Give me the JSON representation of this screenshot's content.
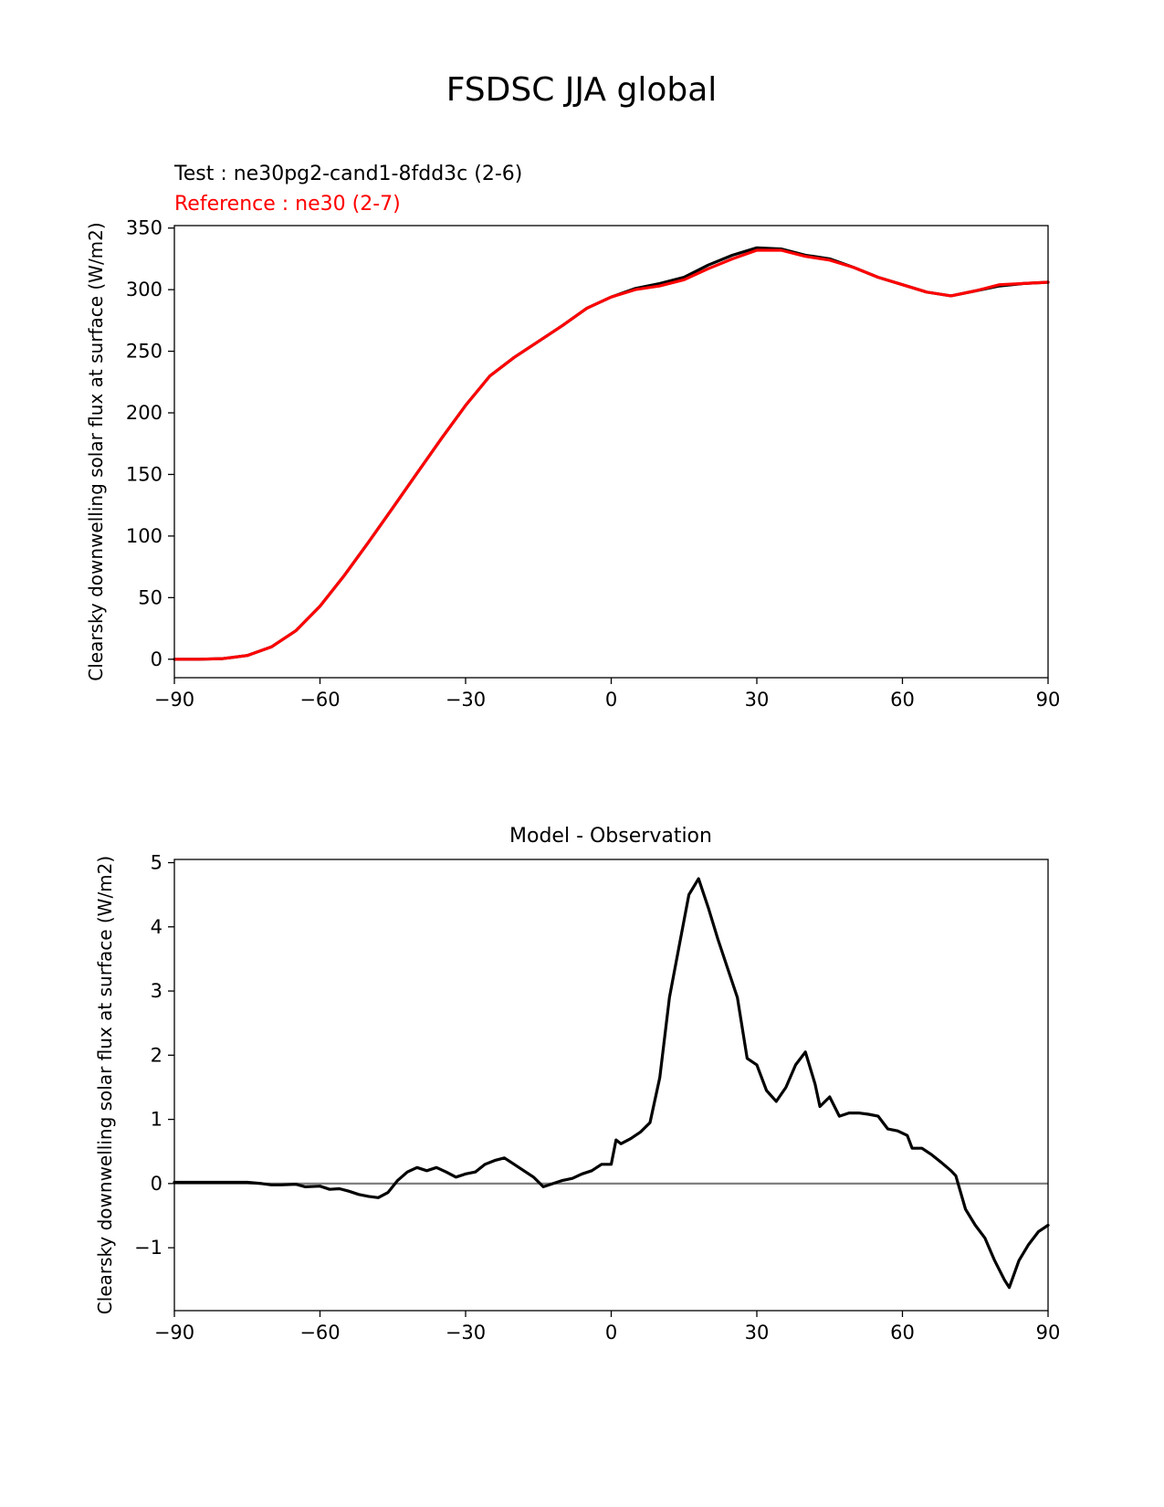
{
  "figure": {
    "title": "FSDSC JJA global"
  },
  "chart_data": [
    {
      "type": "line",
      "title": "",
      "annotation_test": "Test : ne30pg2-cand1-8fdd3c (2-6)",
      "annotation_reference": "Reference : ne30 (2-7)",
      "xlabel": "",
      "ylabel": "Clearsky downwelling solar flux at surface (W/m2)",
      "xlim": [
        -90,
        90
      ],
      "ylim": [
        -15,
        352
      ],
      "xticks": [
        -90,
        -60,
        -30,
        0,
        30,
        60,
        90
      ],
      "xtick_labels": [
        "−90",
        "−60",
        "−30",
        "0",
        "30",
        "60",
        "90"
      ],
      "yticks": [
        0,
        50,
        100,
        150,
        200,
        250,
        300,
        350
      ],
      "ytick_labels": [
        "0",
        "50",
        "100",
        "150",
        "200",
        "250",
        "300",
        "350"
      ],
      "grid": false,
      "series": [
        {
          "name": "Test",
          "color": "#000000",
          "x": [
            -90,
            -85,
            -80,
            -75,
            -70,
            -65,
            -60,
            -55,
            -50,
            -45,
            -40,
            -35,
            -30,
            -25,
            -20,
            -15,
            -10,
            -5,
            0,
            5,
            10,
            15,
            20,
            25,
            30,
            35,
            40,
            45,
            50,
            55,
            60,
            65,
            70,
            75,
            80,
            85,
            90
          ],
          "y": [
            0,
            0,
            0.5,
            3,
            10,
            23,
            43,
            68,
            95,
            123,
            151,
            179,
            206,
            230,
            245,
            258,
            271,
            285,
            294,
            301,
            305,
            310,
            320,
            328,
            334,
            333,
            328,
            325,
            318,
            310,
            304,
            298,
            295,
            299,
            303,
            305,
            306
          ]
        },
        {
          "name": "Reference",
          "color": "#ff0000",
          "x": [
            -90,
            -85,
            -80,
            -75,
            -70,
            -65,
            -60,
            -55,
            -50,
            -45,
            -40,
            -35,
            -30,
            -25,
            -20,
            -15,
            -10,
            -5,
            0,
            5,
            10,
            15,
            20,
            25,
            30,
            35,
            40,
            45,
            50,
            55,
            60,
            65,
            70,
            75,
            80,
            85,
            90
          ],
          "y": [
            0,
            0,
            0.5,
            3,
            10,
            23,
            43,
            68,
            95,
            123,
            151,
            179,
            206,
            230,
            245,
            258,
            271,
            285,
            294,
            300,
            303,
            308,
            317,
            325,
            332,
            332,
            327,
            324,
            318,
            310,
            304,
            298,
            295,
            299,
            304,
            305,
            306
          ]
        }
      ]
    },
    {
      "type": "line",
      "title": "Model - Observation",
      "xlabel": "",
      "ylabel": "Clearsky downwelling solar flux at surface (W/m2)",
      "xlim": [
        -90,
        90
      ],
      "ylim": [
        -1.98,
        5.05
      ],
      "xticks": [
        -90,
        -60,
        -30,
        0,
        30,
        60,
        90
      ],
      "xtick_labels": [
        "−90",
        "−60",
        "−30",
        "0",
        "30",
        "60",
        "90"
      ],
      "yticks": [
        -1,
        0,
        1,
        2,
        3,
        4,
        5
      ],
      "ytick_labels": [
        "−1",
        "0",
        "1",
        "2",
        "3",
        "4",
        "5"
      ],
      "grid": false,
      "zero_line": {
        "y": 0,
        "color": "#808080"
      },
      "series": [
        {
          "name": "Model - Observation",
          "color": "#000000",
          "x": [
            -90,
            -85,
            -80,
            -75,
            -72,
            -70,
            -68,
            -65,
            -63,
            -60,
            -58,
            -56,
            -54,
            -52,
            -50,
            -48,
            -46,
            -44,
            -42,
            -40,
            -38,
            -36,
            -34,
            -32,
            -30,
            -28,
            -26,
            -24,
            -22,
            -20,
            -18,
            -16,
            -14,
            -12,
            -10,
            -8,
            -6,
            -4,
            -2,
            0,
            1,
            2,
            4,
            6,
            8,
            10,
            12,
            14,
            16,
            18,
            20,
            22,
            24,
            26,
            28,
            30,
            32,
            34,
            36,
            38,
            40,
            42,
            43,
            45,
            47,
            49,
            51,
            53,
            55,
            57,
            59,
            61,
            62,
            64,
            66,
            68,
            70,
            71,
            73,
            75,
            77,
            79,
            81,
            82,
            84,
            86,
            88,
            90
          ],
          "y": [
            0.02,
            0.02,
            0.02,
            0.02,
            0.0,
            -0.02,
            -0.02,
            -0.01,
            -0.05,
            -0.04,
            -0.09,
            -0.08,
            -0.12,
            -0.17,
            -0.2,
            -0.22,
            -0.14,
            0.05,
            0.18,
            0.25,
            0.2,
            0.25,
            0.18,
            0.1,
            0.15,
            0.18,
            0.3,
            0.36,
            0.4,
            0.3,
            0.2,
            0.1,
            -0.05,
            0.0,
            0.05,
            0.08,
            0.15,
            0.2,
            0.3,
            0.3,
            0.68,
            0.62,
            0.7,
            0.8,
            0.95,
            1.65,
            2.9,
            3.7,
            4.5,
            4.75,
            4.3,
            3.8,
            3.35,
            2.9,
            1.95,
            1.85,
            1.45,
            1.28,
            1.5,
            1.85,
            2.05,
            1.55,
            1.2,
            1.35,
            1.05,
            1.1,
            1.1,
            1.08,
            1.05,
            0.85,
            0.82,
            0.75,
            0.55,
            0.55,
            0.45,
            0.33,
            0.2,
            0.12,
            -0.4,
            -0.65,
            -0.85,
            -1.2,
            -1.5,
            -1.62,
            -1.2,
            -0.95,
            -0.75,
            -0.65
          ]
        }
      ]
    }
  ]
}
